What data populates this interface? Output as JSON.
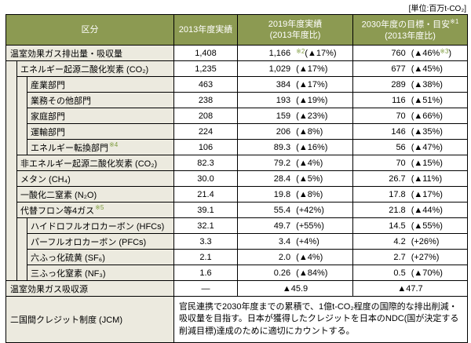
{
  "unit_label": "[単位:百万t-CO₂]",
  "colors": {
    "header_bg": "#8C9A52",
    "header_text": "#FFFFFF",
    "label_bg": "#ECEADF",
    "footnote_green": "#7E9C3E",
    "border": "#000000"
  },
  "table": {
    "headers": {
      "category": "区分",
      "y2013": "2013年度実績",
      "y2019_line1": "2019年度実績",
      "y2019_line2": "(2013年度比)",
      "y2030_line1": "2030年度の目標・目安",
      "y2030_mark": "※1",
      "y2030_line2": "(2013年度比)"
    },
    "rows": [
      {
        "level": 0,
        "label": [
          {
            "t": "温室効果ガス排出量・吸収量"
          }
        ],
        "c2013": "1,408",
        "c2019": {
          "value": "1,166",
          "pct": [
            {
              "t": "※2",
              "m": true
            },
            {
              "t": "(▲17%)"
            }
          ]
        },
        "c2030": {
          "value": "760",
          "pct": [
            {
              "t": "(▲46%"
            },
            {
              "t": "※3",
              "m": true
            },
            {
              "t": ")"
            }
          ]
        }
      },
      {
        "level": 1,
        "label": [
          {
            "t": "エネルギー起源二酸化炭素 (CO₂)"
          }
        ],
        "c2013": "1,235",
        "c2019": {
          "value": "1,029",
          "pct": [
            {
              "t": "(▲17%)"
            }
          ]
        },
        "c2030": {
          "value": "677",
          "pct": [
            {
              "t": "(▲45%)"
            }
          ]
        }
      },
      {
        "level": 2,
        "label": [
          {
            "t": "産業部門"
          }
        ],
        "c2013": "463",
        "c2019": {
          "value": "384",
          "pct": [
            {
              "t": "(▲17%)"
            }
          ]
        },
        "c2030": {
          "value": "289",
          "pct": [
            {
              "t": "(▲38%)"
            }
          ]
        }
      },
      {
        "level": 2,
        "label": [
          {
            "t": "業務その他部門"
          }
        ],
        "c2013": "238",
        "c2019": {
          "value": "193",
          "pct": [
            {
              "t": "(▲19%)"
            }
          ]
        },
        "c2030": {
          "value": "116",
          "pct": [
            {
              "t": "(▲51%)"
            }
          ]
        }
      },
      {
        "level": 2,
        "label": [
          {
            "t": "家庭部門"
          }
        ],
        "c2013": "208",
        "c2019": {
          "value": "159",
          "pct": [
            {
              "t": "(▲23%)"
            }
          ]
        },
        "c2030": {
          "value": "70",
          "pct": [
            {
              "t": "(▲66%)"
            }
          ]
        }
      },
      {
        "level": 2,
        "label": [
          {
            "t": "運輸部門"
          }
        ],
        "c2013": "224",
        "c2019": {
          "value": "206",
          "pct": [
            {
              "t": "(▲8%)"
            }
          ]
        },
        "c2030": {
          "value": "146",
          "pct": [
            {
              "t": "(▲35%)"
            }
          ]
        }
      },
      {
        "level": 2,
        "label": [
          {
            "t": "エネルギー転換部門"
          },
          {
            "t": "※4",
            "m": true
          }
        ],
        "c2013": "106",
        "c2019": {
          "value": "89.3",
          "pct": [
            {
              "t": "(▲16%)"
            }
          ]
        },
        "c2030": {
          "value": "56",
          "pct": [
            {
              "t": "(▲47%)"
            }
          ]
        }
      },
      {
        "level": 1,
        "label": [
          {
            "t": "非エネルギー起源二酸化炭素 (CO₂)"
          }
        ],
        "c2013": "82.3",
        "c2019": {
          "value": "79.2",
          "pct": [
            {
              "t": "(▲4%)"
            }
          ]
        },
        "c2030": {
          "value": "70",
          "pct": [
            {
              "t": "(▲15%)"
            }
          ]
        }
      },
      {
        "level": 1,
        "label": [
          {
            "t": "メタン (CH₄)"
          }
        ],
        "c2013": "30.0",
        "c2019": {
          "value": "28.4",
          "pct": [
            {
              "t": "(▲5%)"
            }
          ]
        },
        "c2030": {
          "value": "26.7",
          "pct": [
            {
              "t": "(▲11%)"
            }
          ]
        }
      },
      {
        "level": 1,
        "label": [
          {
            "t": "一酸化二窒素 (N₂O)"
          }
        ],
        "c2013": "21.4",
        "c2019": {
          "value": "19.8",
          "pct": [
            {
              "t": "(▲8%)"
            }
          ]
        },
        "c2030": {
          "value": "17.8",
          "pct": [
            {
              "t": "(▲17%)"
            }
          ]
        }
      },
      {
        "level": 1,
        "label": [
          {
            "t": "代替フロン等4ガス"
          },
          {
            "t": "※5",
            "m": true
          }
        ],
        "c2013": "39.1",
        "c2019": {
          "value": "55.4",
          "pct": [
            {
              "t": "(+42%)"
            }
          ]
        },
        "c2030": {
          "value": "21.8",
          "pct": [
            {
              "t": "(▲44%)"
            }
          ]
        }
      },
      {
        "level": 2,
        "label": [
          {
            "t": "ハイドロフルオロカーボン (HFCs)"
          }
        ],
        "c2013": "32.1",
        "c2019": {
          "value": "49.7",
          "pct": [
            {
              "t": "(+55%)"
            }
          ]
        },
        "c2030": {
          "value": "14.5",
          "pct": [
            {
              "t": "(▲55%)"
            }
          ]
        }
      },
      {
        "level": 2,
        "label": [
          {
            "t": "パーフルオロカーボン (PFCs)"
          }
        ],
        "c2013": "3.3",
        "c2019": {
          "value": "3.4",
          "pct": [
            {
              "t": "(+4%)"
            }
          ]
        },
        "c2030": {
          "value": "4.2",
          "pct": [
            {
              "t": "(+26%)"
            }
          ]
        }
      },
      {
        "level": 2,
        "label": [
          {
            "t": "六ふっ化硫黄 (SF₆)"
          }
        ],
        "c2013": "2.1",
        "c2019": {
          "value": "2.0",
          "pct": [
            {
              "t": "(▲4%)"
            }
          ]
        },
        "c2030": {
          "value": "2.7",
          "pct": [
            {
              "t": "(+27%)"
            }
          ]
        }
      },
      {
        "level": 2,
        "label": [
          {
            "t": "三ふっ化窒素 (NF₃)"
          }
        ],
        "c2013": "1.6",
        "c2019": {
          "value": "0.26",
          "pct": [
            {
              "t": "(▲84%)"
            }
          ]
        },
        "c2030": {
          "value": "0.5",
          "pct": [
            {
              "t": "(▲70%)"
            }
          ]
        }
      },
      {
        "level": 0,
        "label": [
          {
            "t": "温室効果ガス吸収源"
          }
        ],
        "c2013": "—",
        "c2019": {
          "center": "▲45.9"
        },
        "c2030": {
          "center": "▲47.7"
        }
      },
      {
        "level": 0,
        "jcm": true,
        "label": [
          {
            "t": "二国間クレジット制度 (JCM)"
          }
        ],
        "text": "官民連携で2030年度までの累積で、1億t-CO₂程度の国際的な排出削減・吸収量を目指す。日本が獲得したクレジットを日本のNDC(国が決定する削減目標)達成のために適切にカウントする。"
      }
    ]
  }
}
